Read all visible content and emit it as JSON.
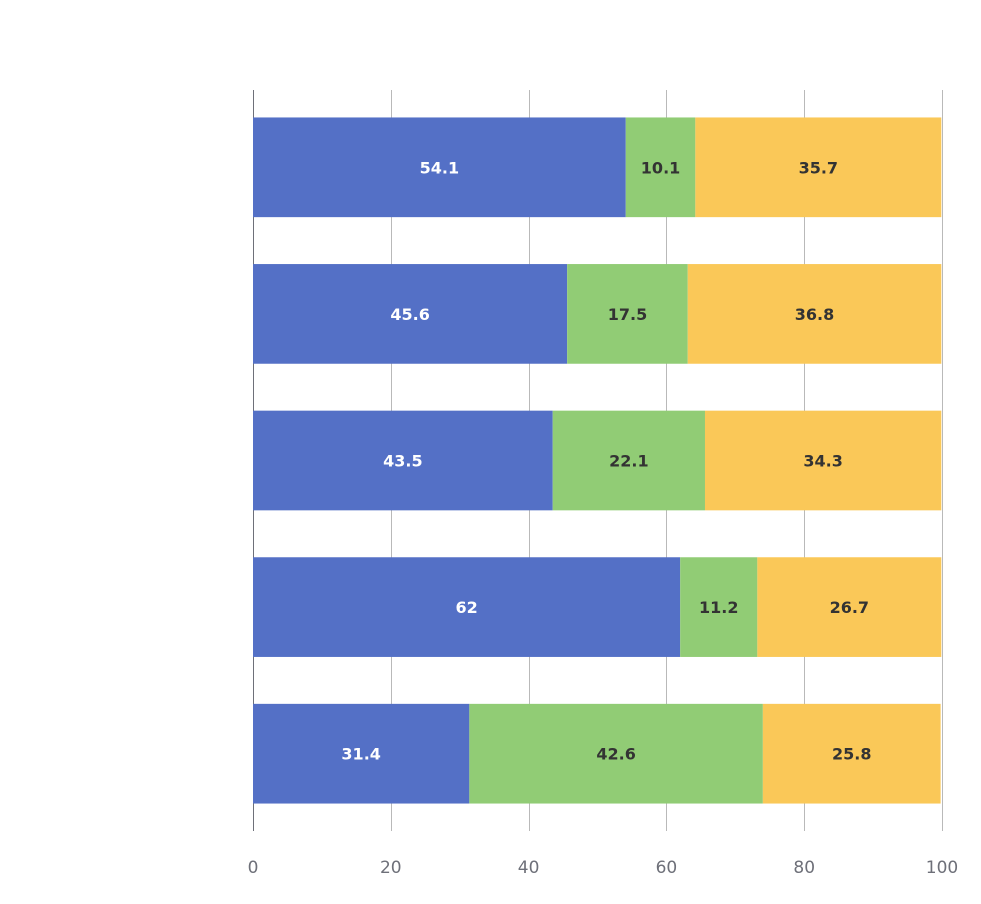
{
  "chart_data": {
    "type": "bar",
    "orientation": "horizontal",
    "stacked": true,
    "categories": [
      "",
      "",
      "",
      "",
      ""
    ],
    "series": [
      {
        "values": [
          54.1,
          45.6,
          43.5,
          62,
          31.4
        ],
        "color": "#5470c6",
        "label_color": "#ffffff"
      },
      {
        "values": [
          10.1,
          17.5,
          22.1,
          11.2,
          42.6
        ],
        "color": "#91cc75",
        "label_color": "#333333"
      },
      {
        "values": [
          35.7,
          36.8,
          34.3,
          26.7,
          25.8
        ],
        "color": "#fac858",
        "label_color": "#333333"
      }
    ],
    "x_ticks": [
      "0",
      "20",
      "40",
      "60",
      "80",
      "100"
    ],
    "xlim": [
      0,
      100
    ],
    "grid": true,
    "legend": "none",
    "title": "",
    "xlabel": "",
    "ylabel": ""
  }
}
